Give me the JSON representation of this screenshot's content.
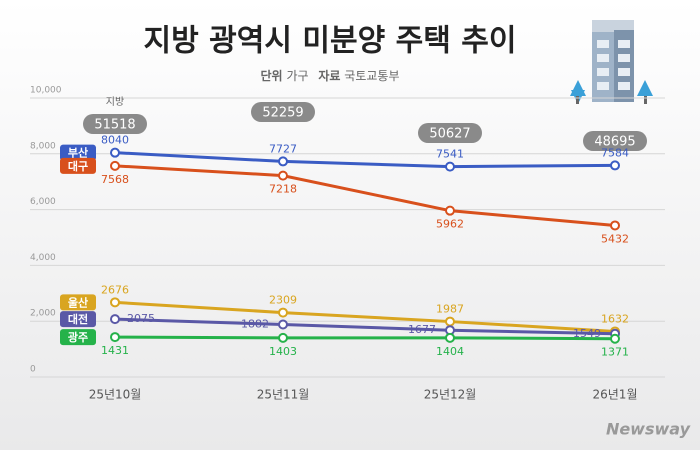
{
  "chart_data": {
    "type": "line",
    "title": "지방 광역시 미분양 주택 추이",
    "unit_key": "단위",
    "unit": "가구",
    "source_key": "자료",
    "source": "국토교통부",
    "brand": "Newsway",
    "categories": [
      "25년10월",
      "25년11월",
      "25년12월",
      "26년1월"
    ],
    "ylim": [
      0,
      10000
    ],
    "yticks": [
      0,
      {
        "value": 2000,
        "label": "2,000"
      },
      {
        "value": 4000,
        "label": "4,000"
      },
      {
        "value": 6000,
        "label": "6,000"
      },
      {
        "value": 8000,
        "label": "8,000"
      },
      {
        "value": 10000,
        "label": "10,000"
      }
    ],
    "grid": true,
    "total_label": "지방",
    "totals": [
      51518,
      52259,
      50627,
      48695
    ],
    "series": [
      {
        "name": "부산",
        "color": "#3a5cc4",
        "values": [
          8040,
          7727,
          7541,
          7584
        ]
      },
      {
        "name": "대구",
        "color": "#d8501c",
        "values": [
          7568,
          7218,
          5962,
          5432
        ]
      },
      {
        "name": "울산",
        "color": "#d9a520",
        "values": [
          2676,
          2309,
          1987,
          1632
        ]
      },
      {
        "name": "대전",
        "color": "#5a58a6",
        "values": [
          2075,
          1882,
          1677,
          1549
        ]
      },
      {
        "name": "광주",
        "color": "#25b24a",
        "values": [
          1431,
          1403,
          1404,
          1371
        ]
      }
    ]
  }
}
